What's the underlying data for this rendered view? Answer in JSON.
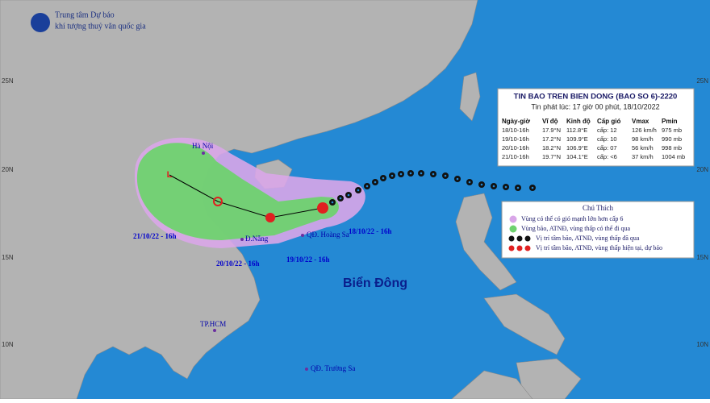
{
  "header": {
    "org_line1": "Trung tâm Dự báo",
    "org_line2": "khí tượng thuỷ văn quốc gia"
  },
  "latitudes": [
    "25N",
    "20N",
    "15N",
    "10N"
  ],
  "places": {
    "hanoi": "Hà Nội",
    "danang": "Đ.Nẵng",
    "hoangsa": "QĐ. Hoàng Sa",
    "hcm": "TP.HCM",
    "truongsa": "QĐ. Trường Sa",
    "sea": "Biển Đông"
  },
  "track_labels": [
    "18/10/22 - 16h",
    "19/10/22 - 16h",
    "20/10/22 - 16h",
    "21/10/22 - 16h"
  ],
  "info": {
    "title": "TIN BAO TREN BIEN DONG (BAO SO 6)-2220",
    "issued": "Tin phát lúc: 17 giờ 00 phút, 18/10/2022",
    "columns": [
      "Ngày-giờ",
      "Vĩ độ",
      "Kinh độ",
      "Cấp gió",
      "Vmax",
      "Pmin"
    ],
    "rows": [
      [
        "18/10-16h",
        "17.9°N",
        "112.8°E",
        "cấp: 12",
        "126 km/h",
        "975 mb"
      ],
      [
        "19/10-16h",
        "17.2°N",
        "109.9°E",
        "cấp: 10",
        "98 km/h",
        "990 mb"
      ],
      [
        "20/10-16h",
        "18.2°N",
        "106.9°E",
        "cấp: 07",
        "56 km/h",
        "998 mb"
      ],
      [
        "21/10-16h",
        "19.7°N",
        "104.1°E",
        "cấp: <6",
        "37 km/h",
        "1004 mb"
      ]
    ]
  },
  "legend": {
    "title": "Chú Thích",
    "items": [
      "Vùng có thể có gió mạnh lớn hơn cấp 6",
      "Vùng bão, ATNĐ, vùng thấp có thể đi qua",
      "Vị trí tâm bão, ATNĐ, vùng thấp đã qua",
      "Vị trí tâm bão, ATNĐ, vùng thấp hiện tại, dự báo"
    ]
  }
}
